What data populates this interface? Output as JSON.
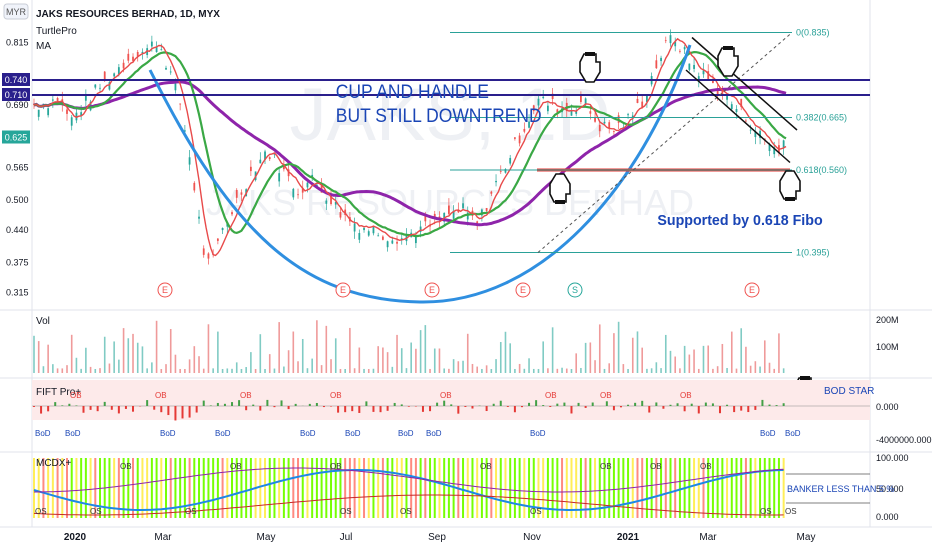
{
  "header": {
    "currency": "MYR",
    "title": "JAKS RESOURCES BERHAD, 1D, MYX",
    "indicators": [
      "TurtlePro",
      "MA"
    ]
  },
  "watermark": {
    "symbol": "JAKS, 1D",
    "name": "JAKS RESOURCES BERHAD"
  },
  "annotations": {
    "cup_title_line1": "CUP AND HANDLE",
    "cup_title_line2": "BUT STILL DOWNTREND",
    "fibo_note": "Supported by 0.618 Fibo",
    "bod_note": "BOD STAR",
    "mcdx_note": "BANKER LESS THAN 5 %"
  },
  "colors": {
    "cup_curve": "#2f8fe0",
    "ma_fast": "#e84a4a",
    "ma_mid": "#3aa845",
    "ma_slow": "#8e24aa",
    "support_line": "#e53935",
    "resistance_line": "#2a1f8c",
    "fibo": "#2aa198",
    "annotation_text": "#1a45b5",
    "up": "#26a69a",
    "down": "#ef5350"
  },
  "chart_data": [
    {
      "type": "line",
      "title": "JAKS RESOURCES BERHAD, 1D, MYX",
      "ylim": [
        0.3,
        0.84
      ],
      "y_ticks": [
        0.815,
        0.69,
        0.625,
        0.565,
        0.5,
        0.44,
        0.375,
        0.315
      ],
      "price_labels": [
        {
          "value": 0.74,
          "text": "0.740"
        },
        {
          "value": 0.71,
          "text": "0.710"
        },
        {
          "value": 0.625,
          "text": "0.625"
        }
      ],
      "x_labels": [
        "2020",
        "Mar",
        "May",
        "Jul",
        "Sep",
        "Nov",
        "2021",
        "Mar",
        "May"
      ],
      "close_series": [
        {
          "x": 0,
          "y": 0.69
        },
        {
          "x": 0.03,
          "y": 0.7
        },
        {
          "x": 0.05,
          "y": 0.66
        },
        {
          "x": 0.07,
          "y": 0.7
        },
        {
          "x": 0.09,
          "y": 0.73
        },
        {
          "x": 0.11,
          "y": 0.76
        },
        {
          "x": 0.13,
          "y": 0.79
        },
        {
          "x": 0.15,
          "y": 0.8
        },
        {
          "x": 0.165,
          "y": 0.82
        },
        {
          "x": 0.18,
          "y": 0.76
        },
        {
          "x": 0.195,
          "y": 0.69
        },
        {
          "x": 0.21,
          "y": 0.56
        },
        {
          "x": 0.225,
          "y": 0.4
        },
        {
          "x": 0.235,
          "y": 0.36
        },
        {
          "x": 0.25,
          "y": 0.44
        },
        {
          "x": 0.27,
          "y": 0.5
        },
        {
          "x": 0.29,
          "y": 0.56
        },
        {
          "x": 0.31,
          "y": 0.6
        },
        {
          "x": 0.33,
          "y": 0.56
        },
        {
          "x": 0.35,
          "y": 0.52
        },
        {
          "x": 0.37,
          "y": 0.54
        },
        {
          "x": 0.39,
          "y": 0.51
        },
        {
          "x": 0.41,
          "y": 0.47
        },
        {
          "x": 0.43,
          "y": 0.45
        },
        {
          "x": 0.45,
          "y": 0.44
        },
        {
          "x": 0.47,
          "y": 0.43
        },
        {
          "x": 0.49,
          "y": 0.425
        },
        {
          "x": 0.51,
          "y": 0.44
        },
        {
          "x": 0.53,
          "y": 0.45
        },
        {
          "x": 0.55,
          "y": 0.47
        },
        {
          "x": 0.57,
          "y": 0.48
        },
        {
          "x": 0.59,
          "y": 0.45
        },
        {
          "x": 0.61,
          "y": 0.52
        },
        {
          "x": 0.63,
          "y": 0.58
        },
        {
          "x": 0.65,
          "y": 0.64
        },
        {
          "x": 0.67,
          "y": 0.7
        },
        {
          "x": 0.69,
          "y": 0.69
        },
        {
          "x": 0.71,
          "y": 0.68
        },
        {
          "x": 0.73,
          "y": 0.7
        },
        {
          "x": 0.75,
          "y": 0.65
        },
        {
          "x": 0.77,
          "y": 0.64
        },
        {
          "x": 0.79,
          "y": 0.66
        },
        {
          "x": 0.81,
          "y": 0.7
        },
        {
          "x": 0.83,
          "y": 0.78
        },
        {
          "x": 0.85,
          "y": 0.83
        },
        {
          "x": 0.87,
          "y": 0.78
        },
        {
          "x": 0.89,
          "y": 0.75
        },
        {
          "x": 0.91,
          "y": 0.72
        },
        {
          "x": 0.93,
          "y": 0.69
        },
        {
          "x": 0.95,
          "y": 0.66
        },
        {
          "x": 0.97,
          "y": 0.62
        },
        {
          "x": 0.99,
          "y": 0.6
        },
        {
          "x": 1.0,
          "y": 0.625
        }
      ],
      "horizontal_levels": [
        {
          "y": 0.74,
          "style": "resistance"
        },
        {
          "y": 0.71,
          "style": "resistance"
        },
        {
          "y": 0.56,
          "style": "support"
        }
      ],
      "fibonacci": [
        {
          "label": "0(0.835)",
          "value": 0.835
        },
        {
          "label": "0.382(0.665)",
          "value": 0.665
        },
        {
          "label": "0.618(0.560)",
          "value": 0.56
        },
        {
          "label": "1(0.395)",
          "value": 0.395
        }
      ],
      "earnings_markers": [
        "E",
        "E",
        "E",
        "E",
        "S",
        "E",
        "E"
      ]
    },
    {
      "type": "bar",
      "title": "Vol",
      "y_ticks": [
        "200M",
        "100M"
      ]
    },
    {
      "type": "bar",
      "title": "FIFT Pro+",
      "y_ticks": [
        "0.000",
        "-4000000.000"
      ],
      "labels": [
        "OB",
        "BoD"
      ]
    },
    {
      "type": "area",
      "title": "MCDX+",
      "y_ticks": [
        "100.000",
        "50.000",
        "0.000"
      ],
      "labels": [
        "OB",
        "OS"
      ]
    }
  ]
}
